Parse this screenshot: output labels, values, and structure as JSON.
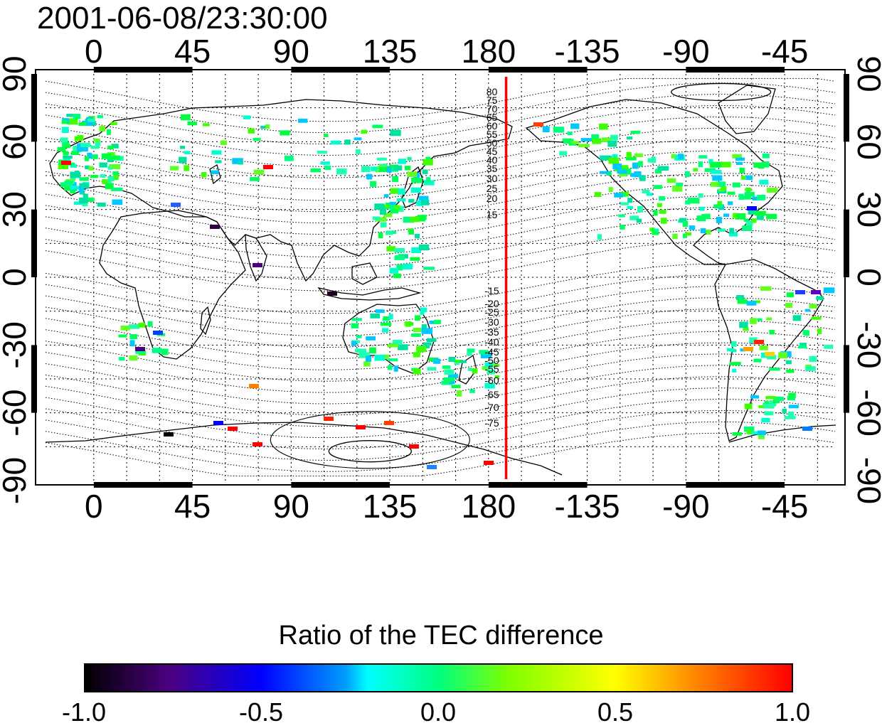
{
  "title": "2001-06-08/23:30:00",
  "map": {
    "lon_ticks": [
      "0",
      "45",
      "90",
      "135",
      "180",
      "-135",
      "-90",
      "-45"
    ],
    "lat_ticks": [
      "90",
      "60",
      "30",
      "0",
      "-30",
      "-60",
      "-90"
    ],
    "projection": "equirectangular",
    "lon_range_east": [
      -22,
      338
    ],
    "lat_range": [
      -90,
      90
    ],
    "meridian_marker_lon": 188,
    "marker_color": "#ff0000",
    "contour_labels_north": [
      "80",
      "75",
      "70",
      "65",
      "60",
      "55",
      "50",
      "45",
      "40",
      "35",
      "30",
      "25",
      "20",
      "15"
    ],
    "contour_labels_south": [
      "-15",
      "-20",
      "-25",
      "-30",
      "-35",
      "-40",
      "-45",
      "-50",
      "-55",
      "-60",
      "-65",
      "-70",
      "-75"
    ]
  },
  "colorbar": {
    "title": "Ratio of the TEC difference",
    "tick_labels": [
      "-1.0",
      "-0.5",
      "0.0",
      "0.5",
      "1.0"
    ],
    "range": [
      -1.0,
      1.0
    ],
    "colors": [
      "#000000",
      "#4b0080",
      "#0000ff",
      "#00ffff",
      "#00ff00",
      "#ffff00",
      "#ff0000"
    ]
  }
}
